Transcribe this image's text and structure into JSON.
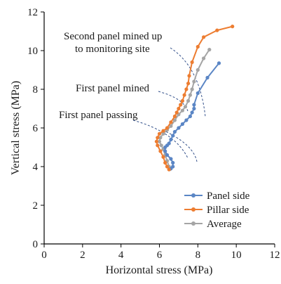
{
  "chart_data": {
    "type": "line",
    "title": "",
    "xlabel": "Horizontal stress (MPa)",
    "ylabel": "Vertical stress (MPa)",
    "xlim": [
      0,
      12
    ],
    "ylim": [
      0,
      12
    ],
    "xticks": [
      0,
      2,
      4,
      6,
      8,
      10,
      12
    ],
    "yticks": [
      0,
      2,
      4,
      6,
      8,
      10,
      12
    ],
    "grid": false,
    "legend_position": "bottom-right",
    "series": [
      {
        "name": "Panel side",
        "color": "#5B86C5",
        "x": [
          6.6,
          6.7,
          6.7,
          6.6,
          6.4,
          6.3,
          6.3,
          6.4,
          6.5,
          6.6,
          6.7,
          6.8,
          7.0,
          7.2,
          7.4,
          7.6,
          7.7,
          7.8,
          7.8,
          8.0,
          8.5,
          9.1
        ],
        "y": [
          3.9,
          4.0,
          4.2,
          4.4,
          4.6,
          4.8,
          5.0,
          5.1,
          5.2,
          5.4,
          5.6,
          5.8,
          6.0,
          6.2,
          6.4,
          6.6,
          6.8,
          7.0,
          7.2,
          7.8,
          8.6,
          9.35
        ]
      },
      {
        "name": "Pillar side",
        "color": "#ED7D31",
        "x": [
          6.5,
          6.4,
          6.3,
          6.2,
          6.05,
          5.9,
          5.85,
          5.9,
          6.0,
          6.2,
          6.4,
          6.6,
          6.8,
          6.9,
          7.0,
          7.1,
          7.2,
          7.3,
          7.4,
          7.5,
          7.55,
          7.7,
          8.0,
          8.3,
          9.0,
          9.8
        ],
        "y": [
          3.85,
          4.0,
          4.2,
          4.5,
          4.8,
          5.1,
          5.3,
          5.5,
          5.7,
          5.85,
          6.0,
          6.3,
          6.6,
          6.8,
          7.0,
          7.2,
          7.4,
          7.7,
          8.0,
          8.3,
          8.7,
          9.4,
          10.2,
          10.7,
          11.05,
          11.25
        ]
      },
      {
        "name": "Average",
        "color": "#A5A5A5",
        "x": [
          6.55,
          6.5,
          6.4,
          6.3,
          6.2,
          6.1,
          6.0,
          6.05,
          6.2,
          6.4,
          6.6,
          6.8,
          7.0,
          7.2,
          7.35,
          7.5,
          7.6,
          7.7,
          7.8,
          8.0,
          8.3,
          8.6
        ],
        "y": [
          3.87,
          4.0,
          4.3,
          4.6,
          4.9,
          5.1,
          5.3,
          5.5,
          5.7,
          5.9,
          6.1,
          6.4,
          6.7,
          6.9,
          7.1,
          7.4,
          7.7,
          8.0,
          8.4,
          9.0,
          9.6,
          10.05
        ]
      }
    ],
    "annotations": [
      {
        "text": "Second panel mined up",
        "line": 1
      },
      {
        "text": "to monitoring site",
        "line": 2
      },
      {
        "text": "First panel mined"
      },
      {
        "text": "First panel passing"
      }
    ]
  }
}
